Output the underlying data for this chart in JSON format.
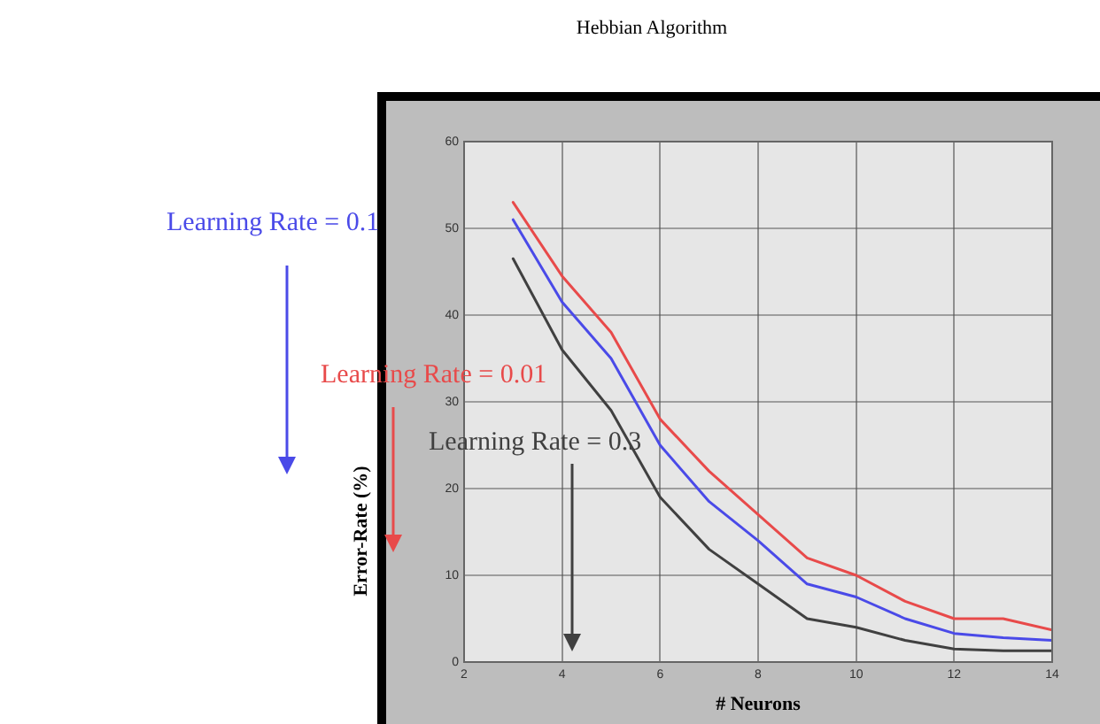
{
  "chart_data": {
    "type": "line",
    "title": "Hebbian Algorithm",
    "xlabel": "# Neurons",
    "ylabel": "Error-Rate (%)",
    "x": [
      3,
      4,
      5,
      6,
      7,
      8,
      9,
      10,
      11,
      12,
      13,
      14
    ],
    "series": [
      {
        "name": "Learning Rate = 0.1",
        "color": "#4a4ae8",
        "values": [
          51,
          41.5,
          35,
          25,
          18.5,
          14,
          9,
          7.5,
          5,
          3.3,
          2.8,
          2.5
        ]
      },
      {
        "name": "Learning Rate = 0.01",
        "color": "#e84a4a",
        "values": [
          53,
          44.5,
          38,
          28,
          22,
          17,
          12,
          10,
          7,
          5,
          5,
          3.7
        ]
      },
      {
        "name": "Learning Rate = 0.3",
        "color": "#404040",
        "values": [
          46.5,
          36,
          29,
          19,
          13,
          9,
          5,
          4,
          2.5,
          1.5,
          1.3,
          1.3
        ]
      }
    ],
    "xlim": [
      2,
      14
    ],
    "xticks": [
      2,
      4,
      6,
      8,
      10,
      12,
      14
    ],
    "ylim": [
      0,
      60
    ],
    "yticks": [
      0,
      10,
      20,
      30,
      40,
      50,
      60
    ],
    "grid": true,
    "marker": "none",
    "line_style": "solid"
  }
}
